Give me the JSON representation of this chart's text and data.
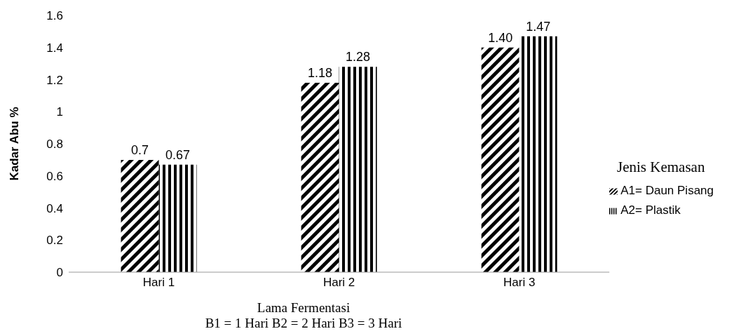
{
  "chart_data": {
    "type": "bar",
    "xlabel": "Lama Fermentasi",
    "ylabel": "Kadar Abu %",
    "legend_title": "Jenis Kemasan",
    "annotations": [
      "B1 = 1 Hari B2 = 2 Hari B3 = 3 Hari"
    ],
    "categories": [
      "Hari 1",
      "Hari 2",
      "Hari 3"
    ],
    "series": [
      {
        "name": "A1= Daun Pisang",
        "color": "#000000",
        "values": [
          0.7,
          1.18,
          1.4
        ],
        "value_labels": [
          "0.7",
          "1.18",
          "1.40"
        ]
      },
      {
        "name": "A2= Plastik",
        "color": "#000000",
        "values": [
          0.67,
          1.28,
          1.47
        ],
        "value_labels": [
          "0.67",
          "1.28",
          "1.47"
        ]
      }
    ],
    "ylim": [
      0,
      1.6
    ],
    "yticks": [
      0,
      0.2,
      0.4,
      0.6,
      0.8,
      1,
      1.2,
      1.4,
      1.6
    ],
    "grid": false,
    "legend": "right"
  }
}
